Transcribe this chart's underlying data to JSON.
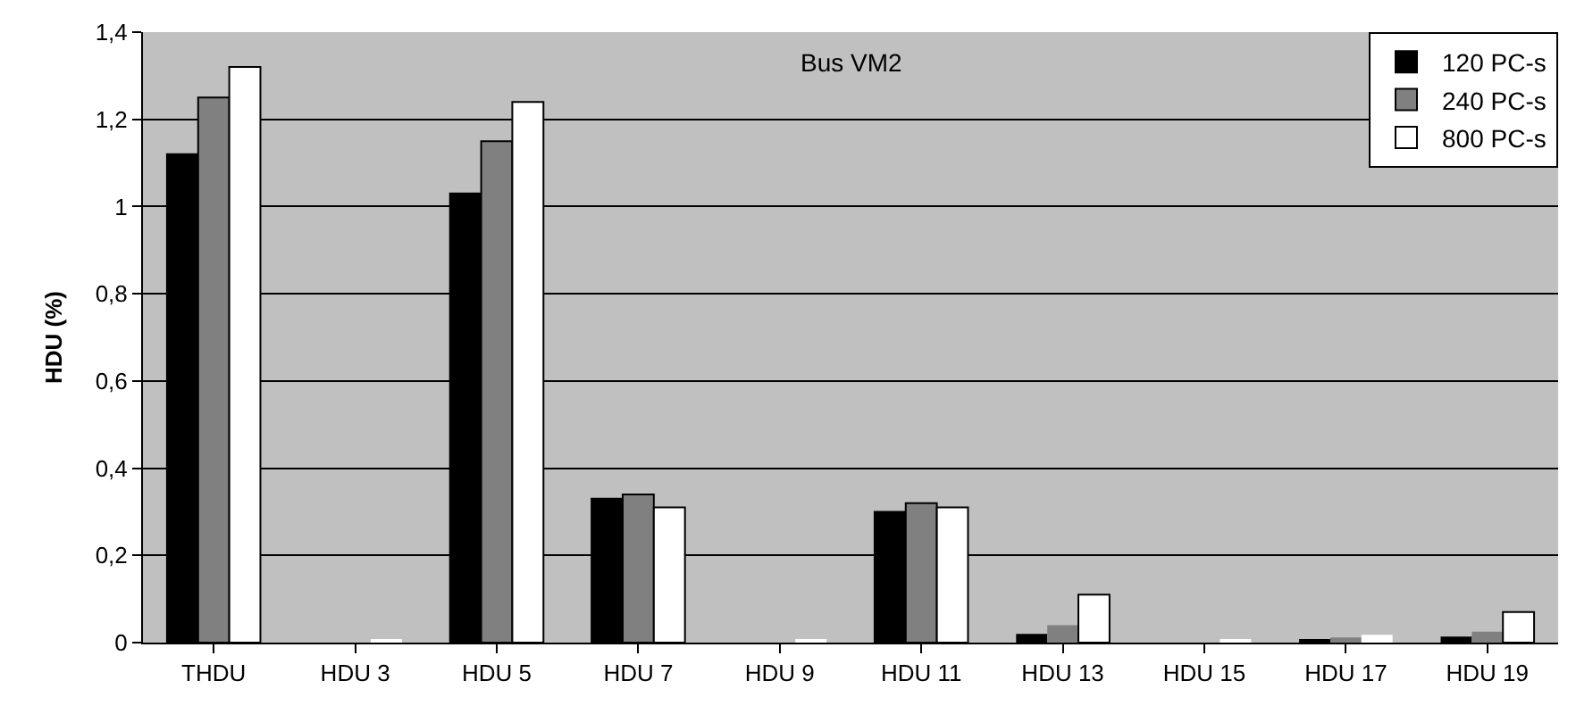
{
  "chart_data": {
    "type": "bar",
    "title": "Bus VM2",
    "ylabel": "HDU (%)",
    "categories": [
      "THDU",
      "HDU 3",
      "HDU 5",
      "HDU 7",
      "HDU 9",
      "HDU 11",
      "HDU 13",
      "HDU 15",
      "HDU 17",
      "HDU 19"
    ],
    "series": [
      {
        "name": "120 PC-s",
        "color": "#000000",
        "values": [
          1.12,
          0,
          1.03,
          0.33,
          0,
          0.3,
          0.02,
          0,
          0.005,
          0.014
        ]
      },
      {
        "name": "240 PC-s",
        "color": "#808080",
        "values": [
          1.25,
          0,
          1.15,
          0.34,
          0,
          0.32,
          0.04,
          0,
          0.012,
          0.025
        ]
      },
      {
        "name": "800 PC-s",
        "color": "#ffffff",
        "values": [
          1.32,
          0.005,
          1.24,
          0.31,
          0.005,
          0.31,
          0.11,
          0.005,
          0.018,
          0.07
        ]
      }
    ],
    "ylim": [
      0,
      1.4
    ],
    "yticks": [
      0,
      {
        "value": 0.2,
        "label": "0,2"
      },
      {
        "value": 0.4,
        "label": "0,4"
      },
      {
        "value": 0.6,
        "label": "0,6"
      },
      {
        "value": 0.8,
        "label": "0,8"
      },
      1,
      {
        "value": 1.2,
        "label": "1,2"
      },
      {
        "value": 1.4,
        "label": "1,4"
      }
    ],
    "grid": "y",
    "legend": "top right"
  }
}
